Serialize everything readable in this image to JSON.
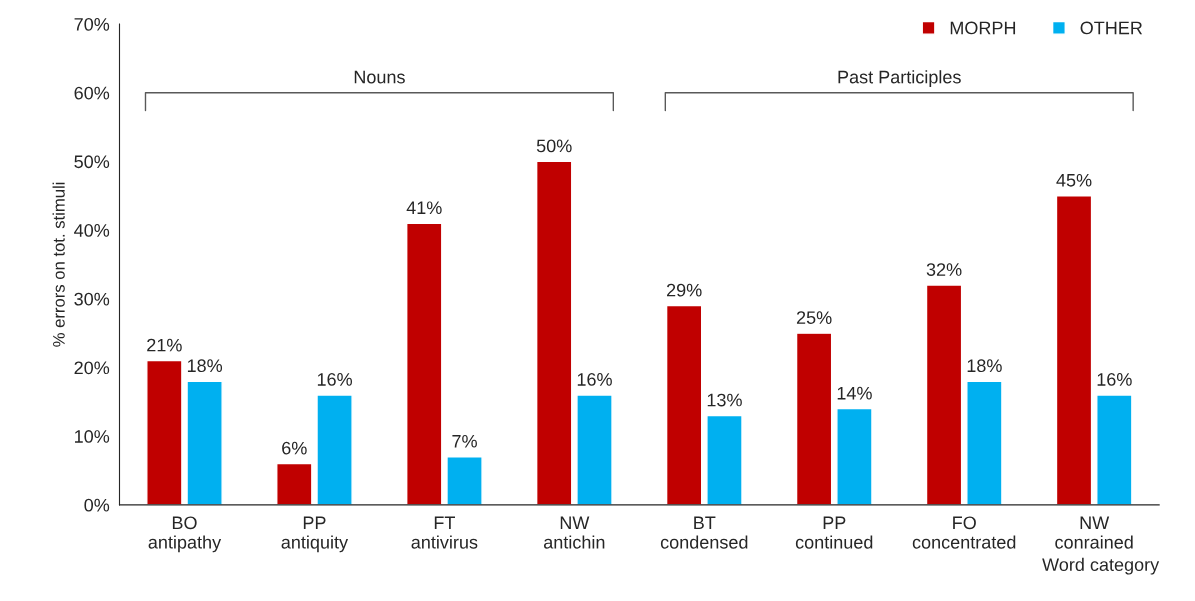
{
  "chart_data": {
    "type": "bar",
    "ylabel": "% errors on tot. stimuli",
    "xlabel": "Word category",
    "categories": [
      "BO\nantipathy",
      "PP\nantiquity",
      "FT\nantivirus",
      "NW\nantichin",
      "BT\ncondensed",
      "PP\ncontinued",
      "FO\nconcentrated",
      "NW\nconrained"
    ],
    "series": [
      {
        "name": "MORPH",
        "color": "#c00000",
        "values": [
          21,
          6,
          41,
          50,
          29,
          25,
          32,
          45
        ],
        "value_labels": [
          "21%",
          "6%",
          "41%",
          "50%",
          "29%",
          "25%",
          "32%",
          "45%"
        ]
      },
      {
        "name": "OTHER",
        "color": "#00b0f0",
        "values": [
          18,
          16,
          7,
          16,
          13,
          14,
          18,
          16
        ],
        "value_labels": [
          "18%",
          "16%",
          "7%",
          "16%",
          "13%",
          "14%",
          "18%",
          "16%"
        ]
      }
    ],
    "ylim": [
      0,
      70
    ],
    "yticks": [
      {
        "value": 0,
        "label": "0%"
      },
      {
        "value": 10,
        "label": "10%"
      },
      {
        "value": 20,
        "label": "20%"
      },
      {
        "value": 30,
        "label": "30%"
      },
      {
        "value": 40,
        "label": "40%"
      },
      {
        "value": 50,
        "label": "50%"
      },
      {
        "value": 60,
        "label": "60%"
      },
      {
        "value": 70,
        "label": "70%"
      }
    ],
    "annotations": [
      "Nouns",
      "Past Participles"
    ],
    "grid": false,
    "legend": "top right"
  }
}
